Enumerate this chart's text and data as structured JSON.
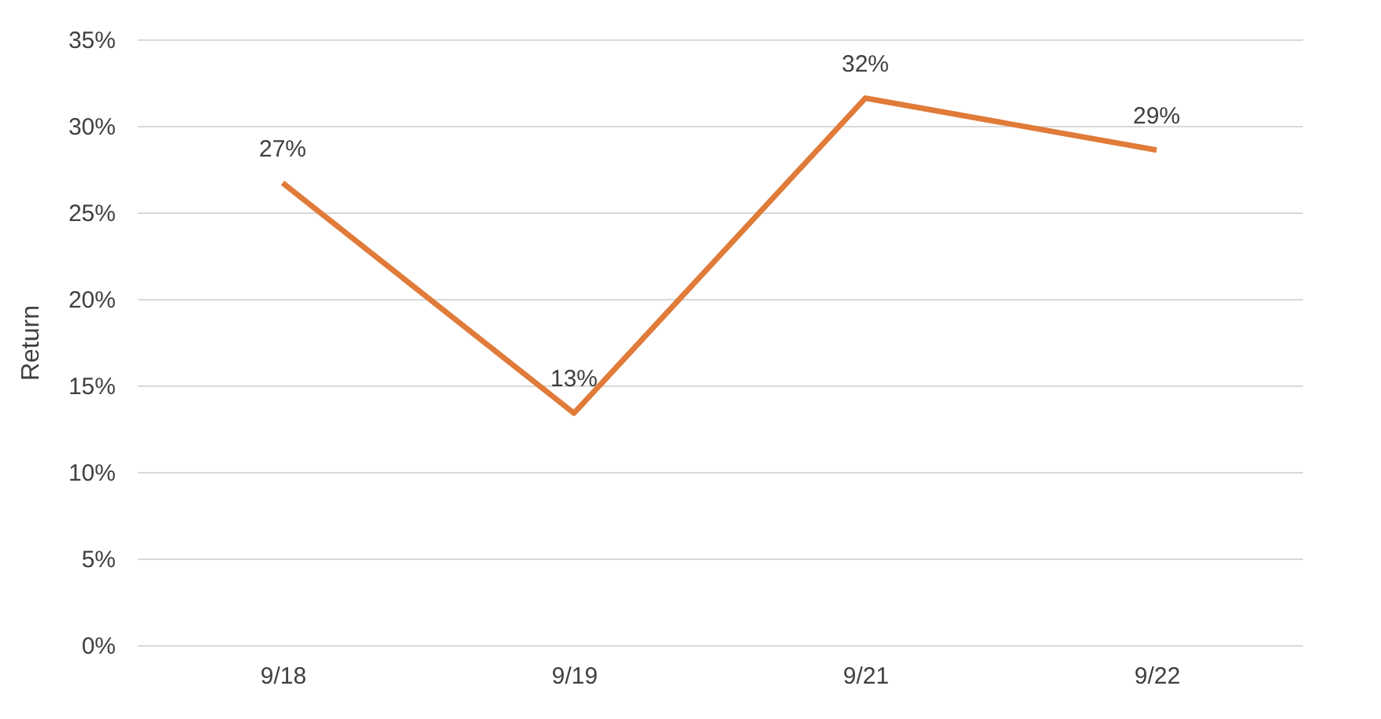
{
  "chart_data": {
    "type": "line",
    "ylabel": "Return",
    "categories": [
      "9/18",
      "9/19",
      "9/21",
      "9/22"
    ],
    "series": [
      {
        "color": "#e07b39",
        "values": [
          26.7,
          13.4,
          31.6,
          28.6
        ],
        "value_labels": [
          "27%",
          "13%",
          "32%",
          "29%"
        ]
      }
    ],
    "ylim": [
      0,
      35
    ],
    "yticks": [
      {
        "value": 0,
        "label": "0%"
      },
      {
        "value": 5,
        "label": "5%"
      },
      {
        "value": 10,
        "label": "10%"
      },
      {
        "value": 15,
        "label": "15%"
      },
      {
        "value": 20,
        "label": "20%"
      },
      {
        "value": 25,
        "label": "25%"
      },
      {
        "value": 30,
        "label": "30%"
      },
      {
        "value": 35,
        "label": "35%"
      }
    ],
    "grid": "y",
    "marker": "none",
    "line_style": "solid"
  }
}
